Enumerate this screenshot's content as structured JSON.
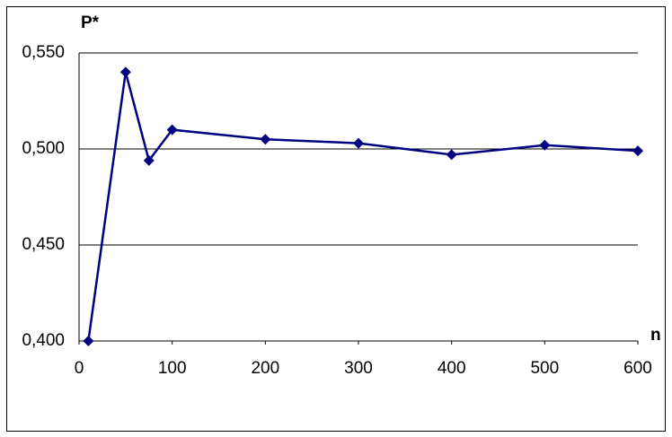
{
  "chart_data": {
    "type": "line",
    "y_label": "P*",
    "x_label": "n",
    "series": [
      {
        "color": "#000080",
        "x": [
          10,
          50,
          75,
          100,
          200,
          300,
          400,
          500,
          600
        ],
        "values": [
          0.4,
          0.54,
          0.494,
          0.51,
          0.505,
          0.503,
          0.497,
          0.502,
          0.499
        ]
      }
    ],
    "xlim": [
      0,
      600
    ],
    "xticks": [
      0,
      100,
      200,
      300,
      400,
      500,
      600
    ],
    "ylim": [
      0.4,
      0.55
    ],
    "yticks": [
      {
        "value": 0.4,
        "label": "0,400"
      },
      {
        "value": 0.45,
        "label": "0,450"
      },
      {
        "value": 0.5,
        "label": "0,500"
      },
      {
        "value": 0.55,
        "label": "0,550"
      }
    ],
    "grid": true
  }
}
